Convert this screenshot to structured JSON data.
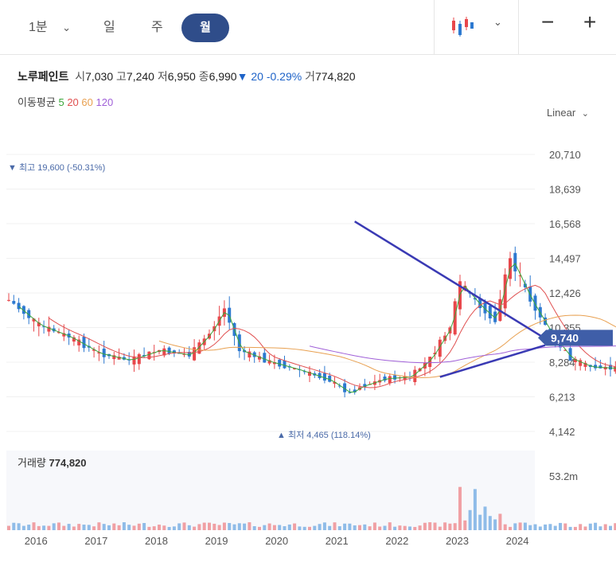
{
  "toolbar": {
    "interval_label": "1분",
    "periods": [
      "일",
      "주",
      "월"
    ],
    "active_period": "월",
    "chart_type_icon": "candlestick-icon",
    "zoom_out_label": "−",
    "zoom_in_label": "+"
  },
  "stock": {
    "name": "노루페인트",
    "open_label": "시",
    "open": "7,030",
    "high_label": "고",
    "high": "7,240",
    "low_label": "저",
    "low": "6,950",
    "close_label": "종",
    "close": "6,990",
    "change_arrow": "▼",
    "change": "20",
    "change_pct": "-0.29%",
    "volume_label": "거",
    "volume": "774,820"
  },
  "moving_avg": {
    "label": "이동평균",
    "periods": [
      "5",
      "20",
      "60",
      "120"
    ],
    "colors": [
      "#3aa63a",
      "#e05050",
      "#e8a050",
      "#a060d8"
    ]
  },
  "scale_label": "Linear",
  "colors": {
    "up": "#e8474b",
    "down": "#2d79d0",
    "trend": "#3a3ab4",
    "accent": "#2f4d8a"
  },
  "chart_data": {
    "type": "candlestick",
    "y_ticks": [
      "20,710",
      "18,639",
      "16,568",
      "14,497",
      "12,426",
      "10,355",
      "8,284",
      "6,213",
      "4,142"
    ],
    "ylim": [
      4142,
      20710
    ],
    "x_ticks": [
      "2016",
      "2017",
      "2018",
      "2019",
      "2020",
      "2021",
      "2022",
      "2023",
      "2024"
    ],
    "current_price_badge": "9,740",
    "high_marker": {
      "arrow": "▼",
      "label": "최고",
      "value": "19,600",
      "pct": "(-50.31%)"
    },
    "low_marker": {
      "arrow": "▲",
      "label": "최저",
      "value": "4,465",
      "pct": "(118.14%)"
    },
    "volume_title": "거래량",
    "volume_value": "774,820",
    "volume_tick": "53.2m",
    "trendlines": [
      {
        "from": [
          "2021-04",
          16700
        ],
        "to": [
          "2024-06",
          9700
        ]
      },
      {
        "from": [
          "2022-09",
          7400
        ],
        "to": [
          "2024-06",
          9300
        ]
      }
    ]
  }
}
